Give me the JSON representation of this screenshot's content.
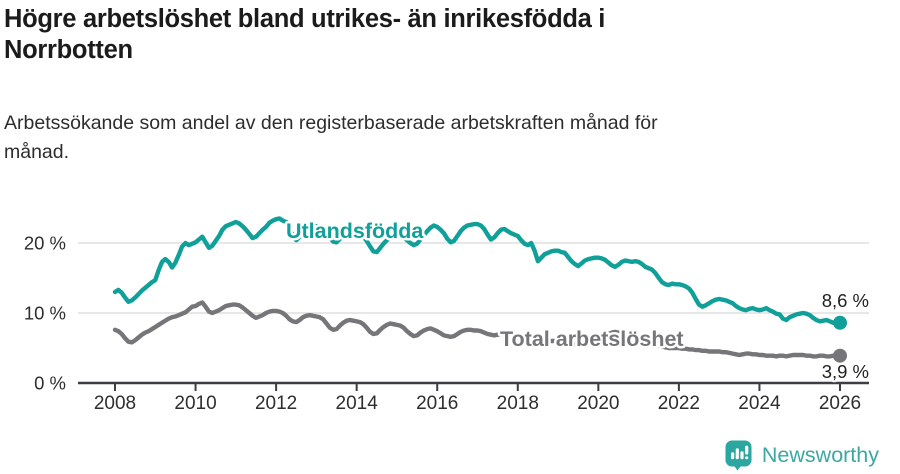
{
  "header": {
    "title": "Högre arbetslöshet bland utrikes- än inrikesfödda i\nNorrbotten",
    "subtitle": "Arbetssökande som andel av den registerbaserade arbetskraften månad för\nmånad."
  },
  "footer": {
    "brand": "Newsworthy",
    "logo_icon": "bar-chart-speech-bubble-icon",
    "icon_color": "#2ba6a1",
    "wordmark_color": "#3ba8a3"
  },
  "colors": {
    "accent_teal": "#10a099",
    "series_gray": "#76767a",
    "grid": "#dfdfdf",
    "axis": "#3d3d44",
    "tick_text": "#2e2e2e",
    "title_text": "#1b1b1b"
  },
  "chart_data": {
    "type": "line",
    "title": "Högre arbetslöshet bland utrikes- än inrikesfödda i Norrbotten",
    "subtitle": "Arbetssökande som andel av den registerbaserade arbetskraften månad för månad.",
    "unit": "%",
    "x_interval": "monthly",
    "x_start": "2008-01",
    "x_end": "2026-01",
    "xlim": [
      2008,
      2026
    ],
    "ylim": [
      0,
      25
    ],
    "grid": "horizontal",
    "legend_position": "inline-labels",
    "x_ticks": [
      {
        "value": 2008,
        "label": "2008"
      },
      {
        "value": 2010,
        "label": "2010"
      },
      {
        "value": 2012,
        "label": "2012"
      },
      {
        "value": 2014,
        "label": "2014"
      },
      {
        "value": 2016,
        "label": "2016"
      },
      {
        "value": 2018,
        "label": "2018"
      },
      {
        "value": 2020,
        "label": "2020"
      },
      {
        "value": 2022,
        "label": "2022"
      },
      {
        "value": 2024,
        "label": "2024"
      },
      {
        "value": 2026,
        "label": "2026"
      }
    ],
    "y_ticks": [
      {
        "value": 0,
        "label": "0 %"
      },
      {
        "value": 10,
        "label": "10 %"
      },
      {
        "value": 20,
        "label": "20 %"
      }
    ],
    "series": [
      {
        "name": "Utlandsfödda",
        "color": "#10a099",
        "end_value": 8.6,
        "end_label": "8,6 %",
        "values": [
          13.0,
          13.3,
          12.9,
          12.2,
          11.6,
          11.8,
          12.2,
          12.7,
          13.2,
          13.6,
          14.0,
          14.4,
          14.7,
          16.1,
          17.3,
          17.7,
          17.3,
          16.5,
          17.2,
          18.3,
          19.5,
          20.0,
          19.7,
          19.9,
          20.1,
          20.5,
          20.9,
          20.1,
          19.3,
          19.6,
          20.3,
          21.0,
          21.9,
          22.4,
          22.6,
          22.8,
          23.0,
          22.8,
          22.4,
          21.9,
          21.3,
          20.7,
          20.9,
          21.4,
          21.9,
          22.3,
          22.9,
          23.2,
          23.4,
          23.5,
          23.2,
          23.0,
          22.0,
          21.0,
          20.4,
          20.9,
          21.5,
          21.9,
          22.2,
          22.4,
          22.4,
          22.2,
          21.9,
          21.4,
          20.8,
          20.2,
          20.1,
          20.6,
          21.1,
          21.5,
          21.7,
          21.8,
          21.6,
          21.3,
          20.9,
          20.3,
          19.5,
          18.8,
          18.7,
          19.3,
          19.9,
          20.4,
          20.9,
          21.2,
          21.3,
          21.1,
          20.8,
          20.4,
          20.0,
          19.7,
          19.9,
          20.5,
          21.1,
          21.7,
          22.2,
          22.5,
          22.3,
          21.9,
          21.4,
          20.6,
          20.1,
          20.3,
          21.0,
          21.7,
          22.2,
          22.5,
          22.6,
          22.7,
          22.7,
          22.5,
          22.0,
          21.2,
          20.5,
          20.8,
          21.4,
          21.9,
          22.0,
          21.7,
          21.4,
          21.2,
          21.0,
          20.4,
          19.9,
          19.7,
          20.0,
          18.9,
          17.4,
          17.9,
          18.4,
          18.6,
          18.8,
          18.9,
          18.9,
          18.7,
          18.6,
          18.0,
          17.4,
          17.0,
          16.7,
          17.1,
          17.5,
          17.7,
          17.8,
          17.9,
          17.9,
          17.8,
          17.6,
          17.2,
          16.8,
          16.6,
          16.9,
          17.3,
          17.5,
          17.4,
          17.3,
          17.4,
          17.3,
          17.0,
          16.6,
          16.4,
          16.2,
          15.7,
          15.0,
          14.4,
          14.1,
          14.0,
          14.2,
          14.1,
          14.1,
          14.0,
          13.8,
          13.5,
          12.9,
          12.0,
          11.2,
          10.9,
          11.1,
          11.4,
          11.7,
          11.9,
          12.0,
          11.9,
          11.8,
          11.6,
          11.4,
          11.0,
          10.7,
          10.5,
          10.4,
          10.6,
          10.7,
          10.5,
          10.4,
          10.5,
          10.7,
          10.4,
          10.2,
          9.9,
          9.8,
          9.2,
          9.0,
          9.4,
          9.6,
          9.8,
          9.9,
          10.0,
          9.9,
          9.7,
          9.3,
          9.0,
          8.8,
          8.9,
          9.0,
          8.8,
          8.6,
          8.6,
          8.6
        ]
      },
      {
        "name": "Total arbetslöshet",
        "color": "#76767a",
        "end_value": 3.9,
        "end_label": "3,9 %",
        "values": [
          7.6,
          7.4,
          7.0,
          6.4,
          5.9,
          5.8,
          6.1,
          6.5,
          6.9,
          7.2,
          7.4,
          7.7,
          8.0,
          8.3,
          8.6,
          8.9,
          9.2,
          9.4,
          9.5,
          9.7,
          9.9,
          10.1,
          10.5,
          10.9,
          11.0,
          11.3,
          11.5,
          10.9,
          10.2,
          10.0,
          10.2,
          10.4,
          10.7,
          11.0,
          11.1,
          11.2,
          11.2,
          11.1,
          10.8,
          10.4,
          10.0,
          9.6,
          9.3,
          9.5,
          9.7,
          10.0,
          10.2,
          10.3,
          10.3,
          10.2,
          10.0,
          9.6,
          9.1,
          8.8,
          8.7,
          9.0,
          9.4,
          9.6,
          9.7,
          9.6,
          9.5,
          9.4,
          9.1,
          8.5,
          7.9,
          7.6,
          7.7,
          8.2,
          8.6,
          8.9,
          9.0,
          8.9,
          8.8,
          8.7,
          8.4,
          7.9,
          7.3,
          7.0,
          7.1,
          7.6,
          8.0,
          8.3,
          8.5,
          8.4,
          8.3,
          8.2,
          7.9,
          7.4,
          7.0,
          6.7,
          6.8,
          7.2,
          7.5,
          7.7,
          7.8,
          7.6,
          7.4,
          7.1,
          6.8,
          6.7,
          6.6,
          6.7,
          7.0,
          7.3,
          7.5,
          7.6,
          7.6,
          7.5,
          7.5,
          7.4,
          7.2,
          7.0,
          6.9,
          6.8,
          6.9,
          7.0,
          7.0,
          6.9,
          6.8,
          6.7,
          6.6,
          6.5,
          6.4,
          6.2,
          6.0,
          5.8,
          5.9,
          6.0,
          6.1,
          6.1,
          6.0,
          6.0,
          5.9,
          5.9,
          5.8,
          5.7,
          5.6,
          5.5,
          5.6,
          5.7,
          5.8,
          5.8,
          5.9,
          6.0,
          6.2,
          6.3,
          6.6,
          7.0,
          7.2,
          7.3,
          7.2,
          7.1,
          7.0,
          6.9,
          6.7,
          6.5,
          6.4,
          6.3,
          6.1,
          5.9,
          5.7,
          5.5,
          5.3,
          5.2,
          5.1,
          5.0,
          5.0,
          5.0,
          5.0,
          4.9,
          4.9,
          4.8,
          4.8,
          4.7,
          4.7,
          4.6,
          4.6,
          4.5,
          4.5,
          4.5,
          4.5,
          4.4,
          4.4,
          4.3,
          4.2,
          4.1,
          4.0,
          4.1,
          4.2,
          4.2,
          4.1,
          4.1,
          4.0,
          4.0,
          3.9,
          3.9,
          3.9,
          3.8,
          3.9,
          3.9,
          3.8,
          3.9,
          4.0,
          4.0,
          4.0,
          4.0,
          3.9,
          3.9,
          3.8,
          3.8,
          3.9,
          3.9,
          3.8,
          3.8,
          3.9,
          3.9,
          3.9
        ]
      }
    ]
  }
}
